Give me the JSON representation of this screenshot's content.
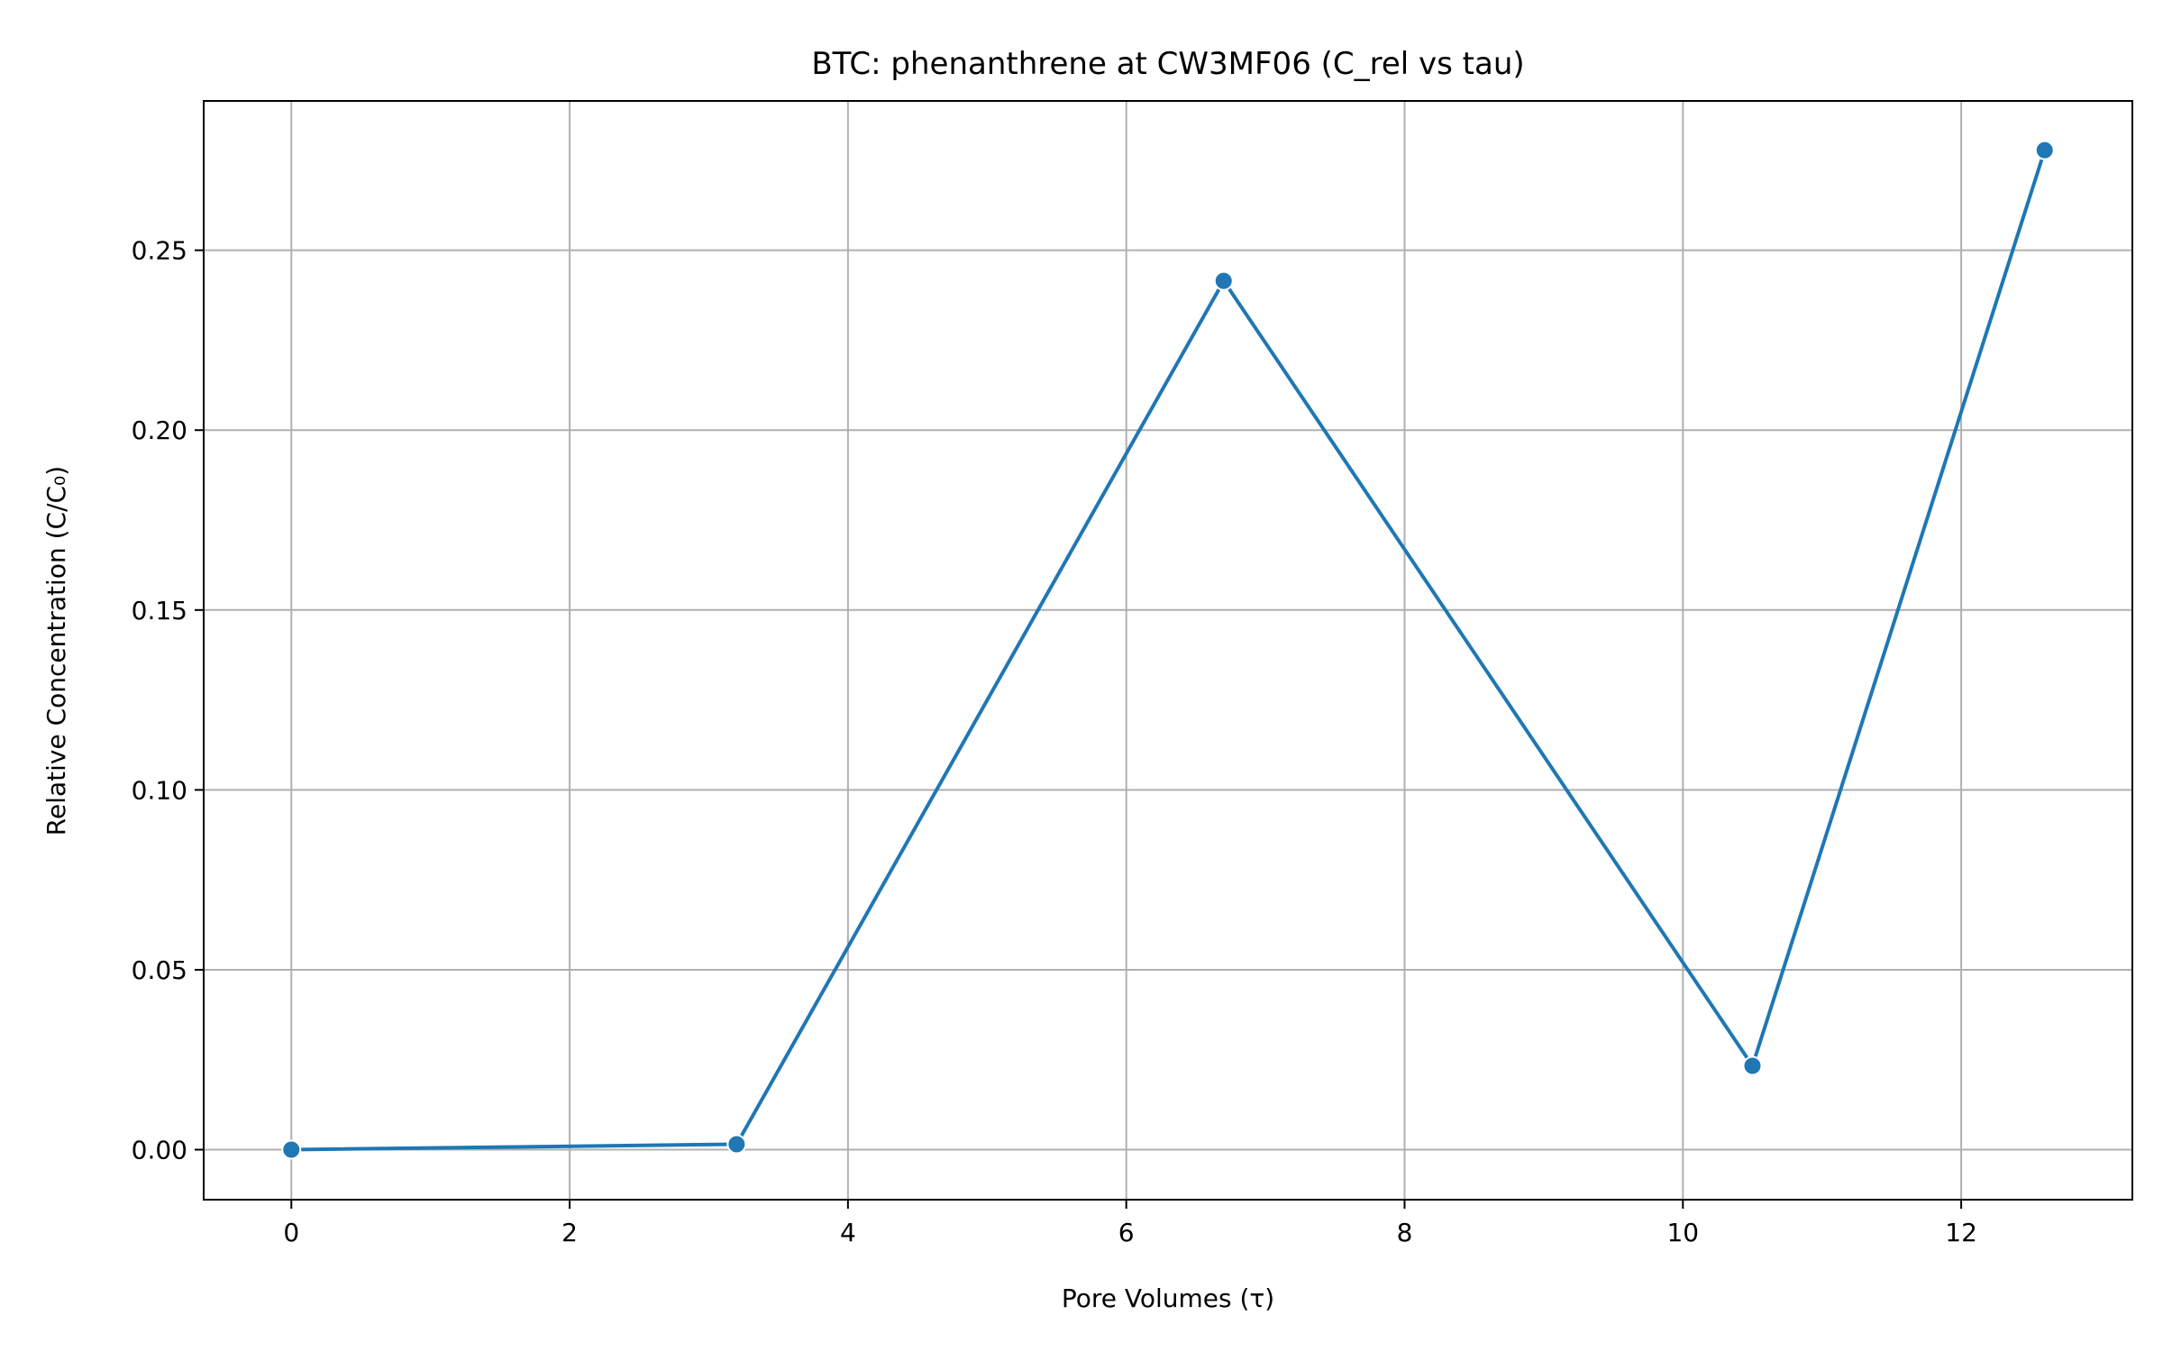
{
  "chart_data": {
    "type": "line",
    "title": "BTC: phenanthrene at CW3MF06 (C_rel vs tau)",
    "xlabel": "Pore Volumes (τ)",
    "ylabel": "Relative Concentration (C/C₀)",
    "xlim": [
      -0.63,
      13.23
    ],
    "ylim": [
      -0.0139,
      0.2915
    ],
    "xticks": [
      0,
      2,
      4,
      6,
      8,
      10,
      12
    ],
    "xtick_labels": [
      "0",
      "2",
      "4",
      "6",
      "8",
      "10",
      "12"
    ],
    "yticks": [
      0.0,
      0.05,
      0.1,
      0.15,
      0.2,
      0.25
    ],
    "ytick_labels": [
      "0.00",
      "0.05",
      "0.10",
      "0.15",
      "0.20",
      "0.25"
    ],
    "grid": true,
    "series": [
      {
        "color": "#1f77b4",
        "marker": "circle",
        "x": [
          0.0,
          3.2,
          6.7,
          10.5,
          12.6
        ],
        "y": [
          0.0,
          0.0015,
          0.2415,
          0.0233,
          0.2778
        ]
      }
    ]
  }
}
